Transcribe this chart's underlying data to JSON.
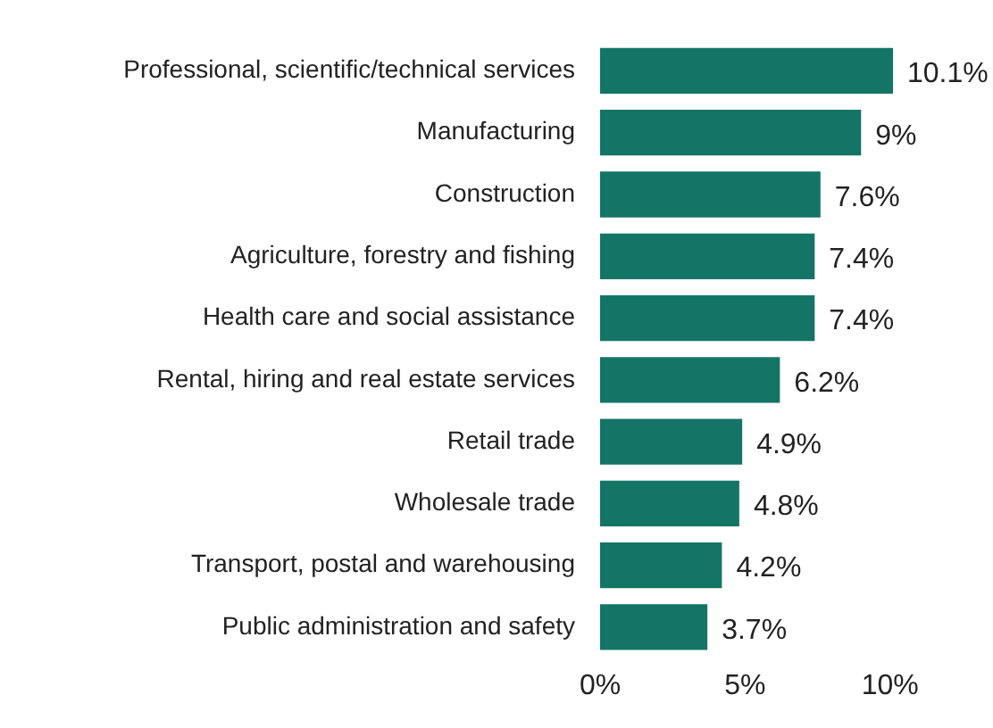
{
  "chart_data": {
    "type": "bar",
    "orientation": "horizontal",
    "categories": [
      "Professional, scientific/technical services",
      "Manufacturing",
      "Construction",
      "Agriculture, forestry and fishing",
      "Health care and social assistance",
      "Rental, hiring and real estate services",
      "Retail trade",
      "Wholesale trade",
      "Transport, postal and warehousing",
      "Public administration and safety"
    ],
    "values": [
      10.1,
      9,
      7.6,
      7.4,
      7.4,
      6.2,
      4.9,
      4.8,
      4.2,
      3.7
    ],
    "value_labels": [
      "10.1%",
      "9%",
      "7.6%",
      "7.4%",
      "7.4%",
      "6.2%",
      "4.9%",
      "4.8%",
      "4.2%",
      "3.7%"
    ],
    "color": "#137565",
    "xlim": [
      0,
      10.1
    ],
    "xticks": [
      {
        "value": 0,
        "label": "0%"
      },
      {
        "value": 5,
        "label": "5%"
      },
      {
        "value": 10,
        "label": "10%"
      }
    ]
  }
}
